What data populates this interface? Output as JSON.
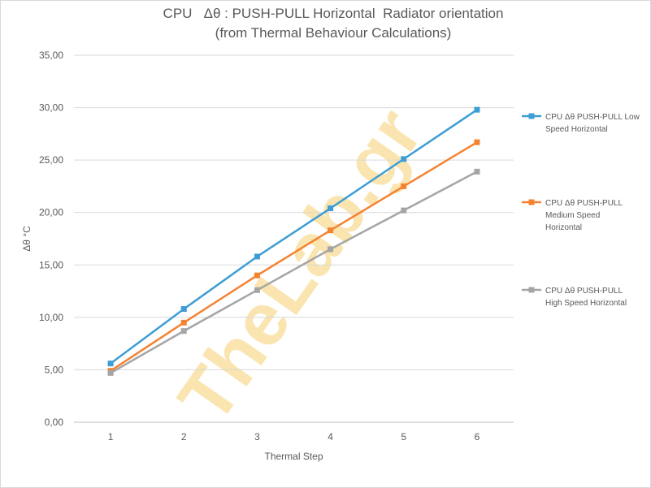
{
  "chart_data": {
    "type": "line",
    "title_lines": [
      "CPU   Δθ : PUSH-PULL Horizontal  Radiator orientation",
      "(from Thermal Behaviour Calculations)"
    ],
    "xlabel": "Thermal Step",
    "ylabel": "Δθ °C",
    "categories": [
      "1",
      "2",
      "3",
      "4",
      "5",
      "6"
    ],
    "ylim": [
      0,
      35
    ],
    "yticks": [
      "0,00",
      "5,00",
      "10,00",
      "15,00",
      "20,00",
      "25,00",
      "30,00",
      "35,00"
    ],
    "grid": true,
    "legend_position": "right",
    "series": [
      {
        "name": "CPU Δθ PUSH-PULL Low Speed Horizontal",
        "legend_lines": [
          "CPU Δθ PUSH-PULL Low",
          "Speed Horizontal"
        ],
        "color": "#3d9dd4",
        "values": [
          5.6,
          10.8,
          15.8,
          20.4,
          25.1,
          29.8
        ]
      },
      {
        "name": "CPU Δθ PUSH-PULL Medium Speed Horizontal",
        "legend_lines": [
          "CPU Δθ PUSH-PULL",
          "Medium Speed",
          "Horizontal"
        ],
        "color": "#f58231",
        "values": [
          4.9,
          9.5,
          14.0,
          18.3,
          22.5,
          26.7
        ]
      },
      {
        "name": "CPU Δθ PUSH-PULL High Speed Horizontal",
        "legend_lines": [
          "CPU Δθ PUSH-PULL",
          "High Speed Horizontal"
        ],
        "color": "#a5a5a5",
        "values": [
          4.7,
          8.7,
          12.6,
          16.5,
          20.2,
          23.9
        ]
      }
    ]
  },
  "watermark": {
    "text": "TheLab.gr",
    "color": "#f6cf6e"
  }
}
